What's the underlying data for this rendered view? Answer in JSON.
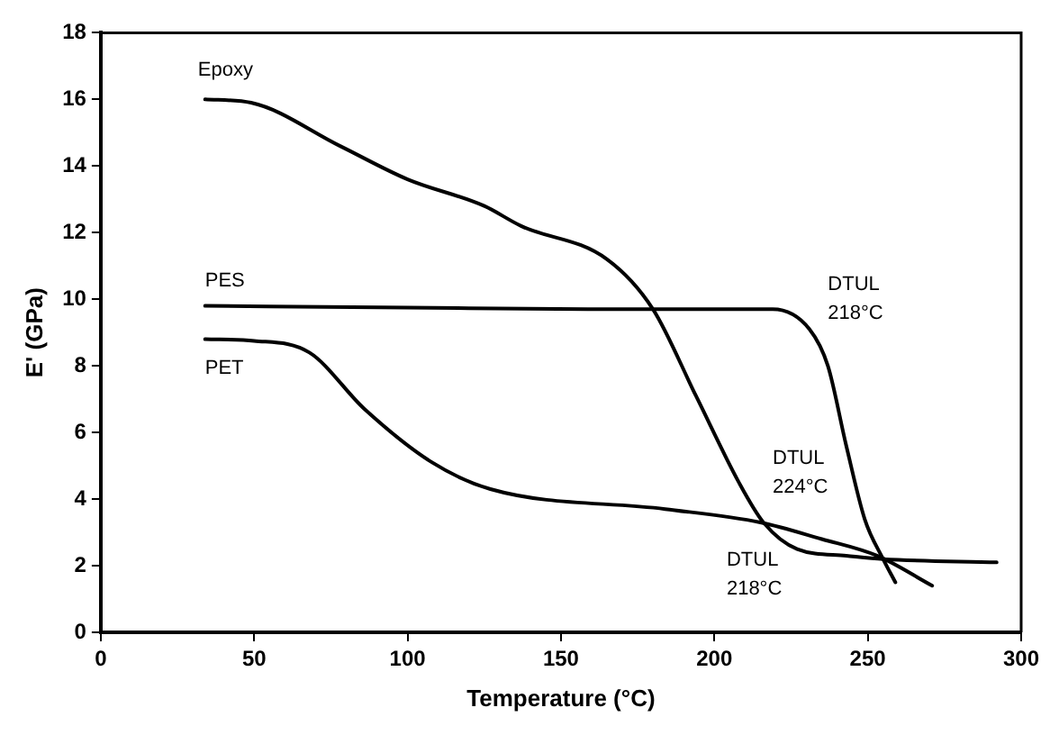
{
  "chart_data": {
    "type": "line",
    "xlabel": "Temperature (°C)",
    "ylabel": "E' (GPa)",
    "xlim": [
      0,
      300
    ],
    "xticks": [
      0,
      50,
      100,
      150,
      200,
      250,
      300
    ],
    "ylim": [
      0,
      18
    ],
    "yticks": [
      0,
      2,
      4,
      6,
      8,
      10,
      12,
      14,
      16,
      18
    ],
    "grid": false,
    "legend": false,
    "marker": "none",
    "line_style": "solid",
    "series": [
      {
        "name": "Epoxy",
        "color": "#000000",
        "x": [
          34,
          49,
          78,
          100,
          125,
          137,
          165,
          180,
          194,
          208,
          216,
          227,
          243,
          255,
          292
        ],
        "values": [
          16,
          15.9,
          14.6,
          13.6,
          12.8,
          12.2,
          11.2,
          9.7,
          7.1,
          4.5,
          3.3,
          2.5,
          2.3,
          2.2,
          2.1
        ]
      },
      {
        "name": "PES",
        "color": "#000000",
        "x": [
          34,
          100,
          160,
          219,
          231,
          237,
          243,
          249,
          255,
          259
        ],
        "values": [
          9.8,
          9.75,
          9.7,
          9.7,
          9.1,
          8,
          5.6,
          3.4,
          2.2,
          1.5
        ]
      },
      {
        "name": "PET",
        "color": "#000000",
        "x": [
          34,
          50,
          68,
          86,
          108,
          127,
          184,
          215,
          235,
          253,
          271
        ],
        "values": [
          8.8,
          8.75,
          8.4,
          6.7,
          5.1,
          4.3,
          3.7,
          3.3,
          2.8,
          2.3,
          1.4
        ]
      }
    ],
    "annotations": [
      "DTUL\n218°C",
      "DTUL\n224°C",
      "DTUL\n218°C"
    ]
  }
}
